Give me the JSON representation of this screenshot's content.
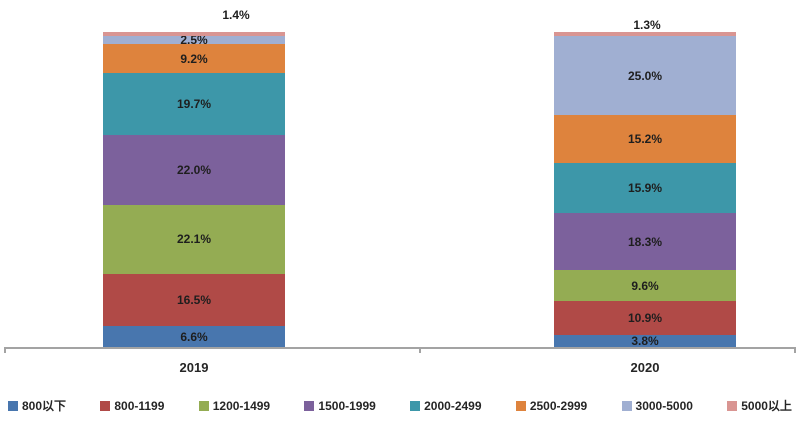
{
  "chart_data": {
    "type": "bar",
    "stacked": true,
    "orientation": "vertical",
    "value_format": "percent",
    "title": "",
    "xlabel": "",
    "ylabel": "",
    "ylim": [
      0,
      100
    ],
    "grid": false,
    "legend_position": "bottom",
    "categories": [
      "2019",
      "2020"
    ],
    "series": [
      {
        "name": "800以下",
        "color": "#4876ae",
        "values": [
          6.6,
          3.8
        ]
      },
      {
        "name": "800-1199",
        "color": "#b04a47",
        "values": [
          16.5,
          10.9
        ]
      },
      {
        "name": "1200-1499",
        "color": "#94ac53",
        "values": [
          22.1,
          9.6
        ]
      },
      {
        "name": "1500-1999",
        "color": "#7c619c",
        "values": [
          22.0,
          18.3
        ]
      },
      {
        "name": "2000-2499",
        "color": "#3d97a9",
        "values": [
          19.7,
          15.9
        ]
      },
      {
        "name": "2500-2999",
        "color": "#de833d",
        "values": [
          9.2,
          15.2
        ]
      },
      {
        "name": "3000-5000",
        "color": "#a0afd2",
        "values": [
          2.5,
          25.0
        ]
      },
      {
        "name": "5000以上",
        "color": "#d99592",
        "values": [
          1.4,
          1.3
        ]
      }
    ],
    "data_labels": {
      "2019": [
        "6.6%",
        "16.5%",
        "22.1%",
        "22.0%",
        "19.7%",
        "9.2%",
        "2.5%",
        "1.4%"
      ],
      "2020": [
        "3.8%",
        "10.9%",
        "9.6%",
        "18.3%",
        "15.9%",
        "15.2%",
        "25.0%",
        "1.3%"
      ]
    },
    "axis_color": "#a3a3a3",
    "label_color": "#1e1e1e"
  }
}
